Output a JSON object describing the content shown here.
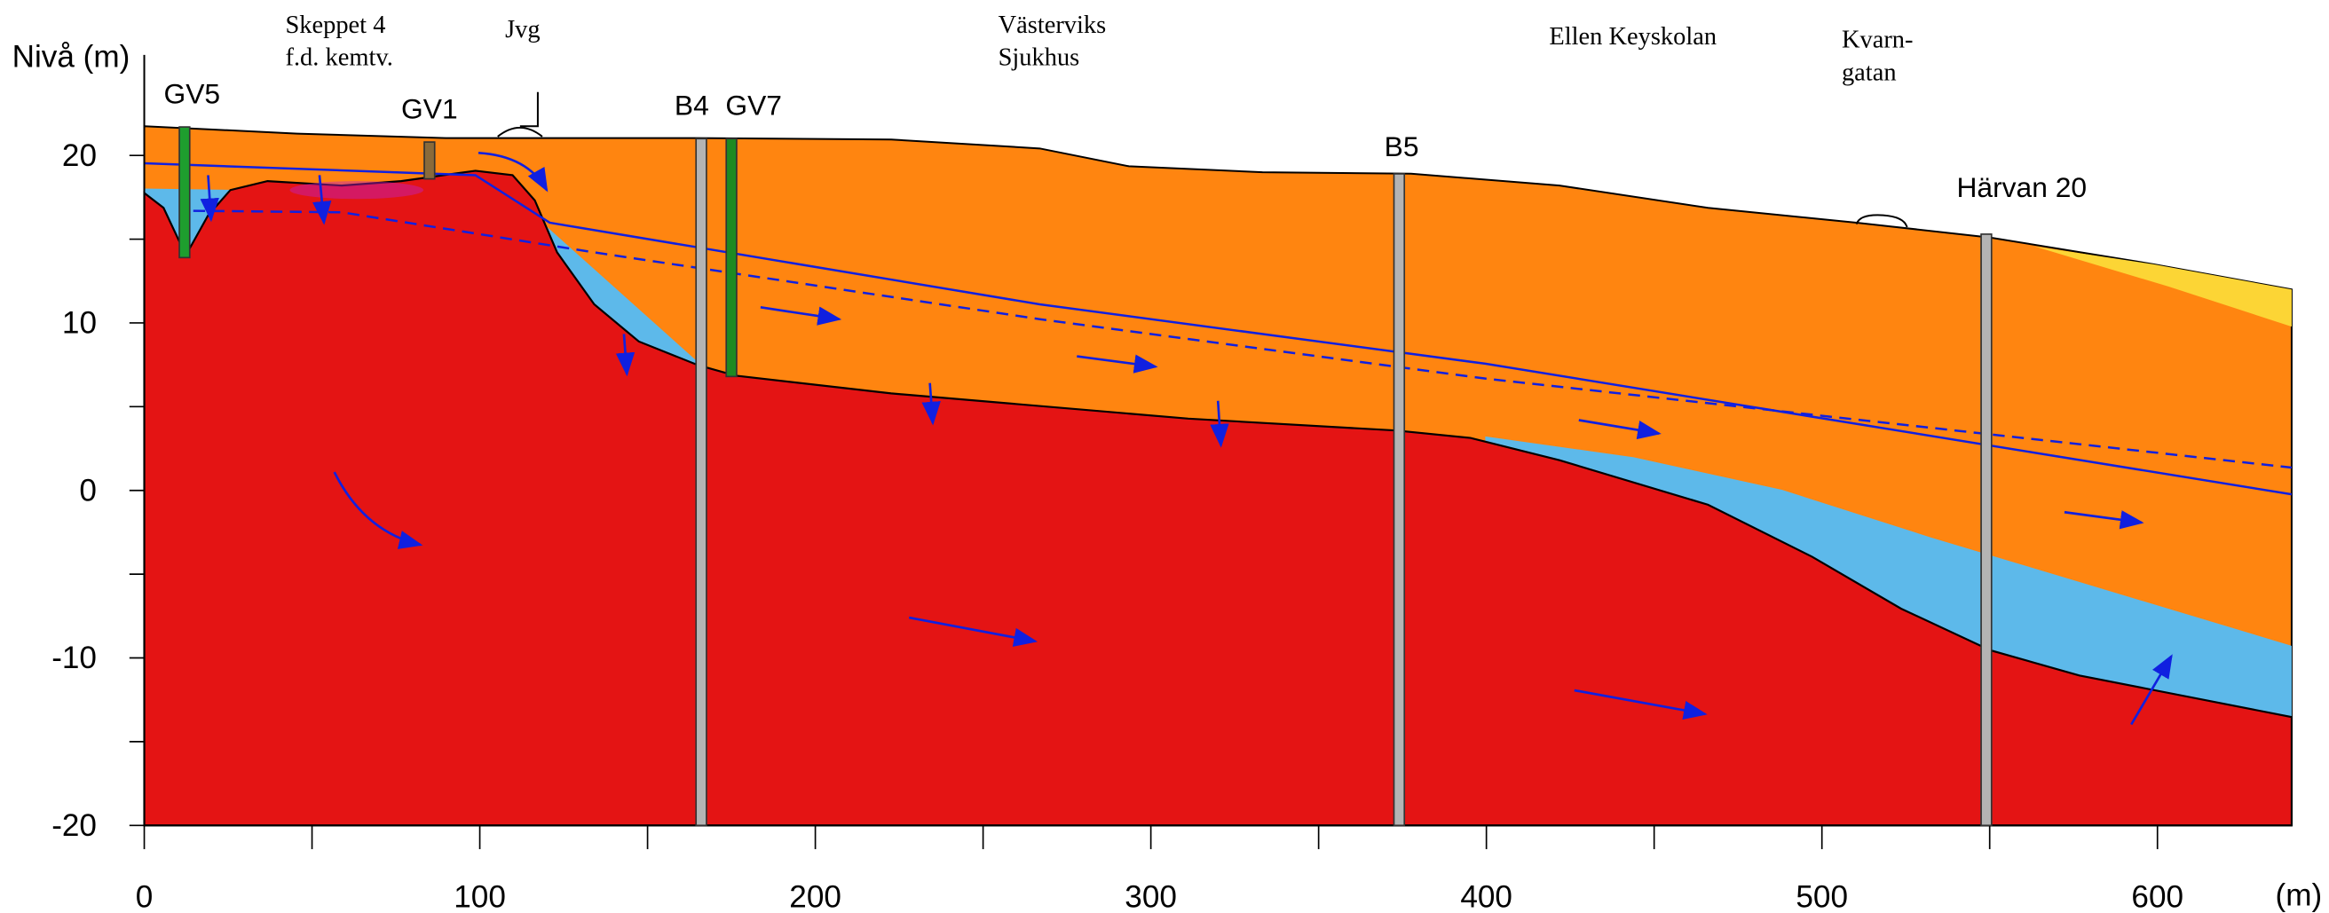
{
  "axes": {
    "y_label": "Nivå (m)",
    "x_label": "(m)",
    "xlim": [
      0,
      640
    ],
    "ylim": [
      -20,
      26
    ],
    "xticks": [
      0,
      100,
      200,
      300,
      400,
      500,
      600
    ],
    "xminor": [
      50,
      150,
      250,
      350,
      450,
      550
    ],
    "yticks": [
      -20,
      -10,
      0,
      10,
      20
    ],
    "yminor": [
      -15,
      -5,
      5,
      15
    ]
  },
  "places": [
    {
      "lines": [
        "Skeppet 4",
        "f.d. kemtv."
      ]
    },
    {
      "lines": [
        "Jvg"
      ]
    },
    {
      "lines": [
        "Västerviks",
        "Sjukhus"
      ]
    },
    {
      "lines": [
        "Ellen Keyskolan"
      ]
    },
    {
      "lines": [
        "Kvarn-",
        "gatan"
      ]
    }
  ],
  "boreholes": [
    {
      "label": "GV5",
      "x": 12,
      "top": 21.7,
      "bottom": 13.9,
      "color": "#1e9e2e"
    },
    {
      "label": "GV1",
      "x": 85,
      "top": 20.8,
      "bottom": 18.6,
      "color": "#8a6a3a"
    },
    {
      "label": "B4",
      "x": 166,
      "top": 21,
      "bottom": -20,
      "color": "#b4b4b4"
    },
    {
      "label": "GV7",
      "x": 175,
      "top": 21,
      "bottom": 6.8,
      "color": "#1e8a22"
    },
    {
      "label": "B5",
      "x": 374,
      "top": 18.9,
      "bottom": -20,
      "color": "#b4b4b4"
    },
    {
      "label": "Härvan 20",
      "x": 549,
      "top": 15.3,
      "bottom": -20,
      "color": "#b4b4b4"
    }
  ]
}
